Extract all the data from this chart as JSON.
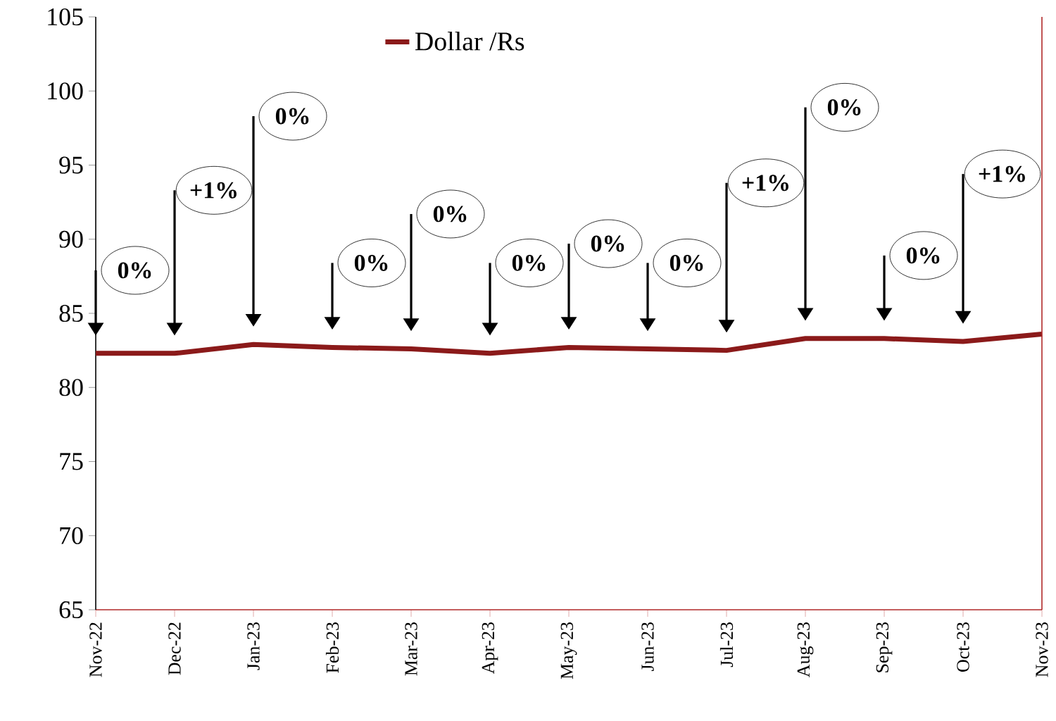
{
  "chart_data": {
    "type": "line",
    "categories": [
      "Nov-22",
      "Dec-22",
      "Jan-23",
      "Feb-23",
      "Mar-23",
      "Apr-23",
      "May-23",
      "Jun-23",
      "Jul-23",
      "Aug-23",
      "Sep-23",
      "Oct-23",
      "Nov-23"
    ],
    "series": [
      {
        "name": "Dollar /Rs",
        "color": "#8b1a1a",
        "values": [
          82.3,
          82.3,
          82.9,
          82.7,
          82.6,
          82.3,
          82.7,
          82.6,
          82.5,
          83.3,
          83.3,
          83.1,
          83.6
        ]
      }
    ],
    "ylim": [
      65,
      105
    ],
    "yticks": [
      65,
      70,
      75,
      80,
      85,
      90,
      95,
      100,
      105
    ],
    "annotations": [
      "0%",
      "+1%",
      "0%",
      "0%",
      "0%",
      "0%",
      "0%",
      "0%",
      "+1%",
      "0%",
      "0%",
      "+1%"
    ],
    "legend": "top",
    "grid": false,
    "marker": "none",
    "line_style": "solid"
  }
}
